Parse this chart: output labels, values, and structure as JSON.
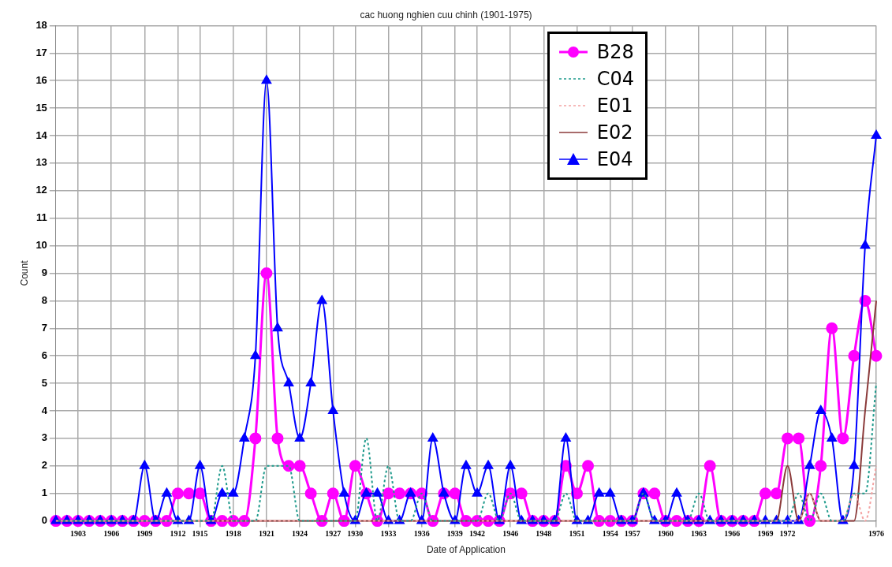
{
  "chart_data": {
    "type": "line",
    "title": "cac huong nghien cuu chinh (1901-1975)",
    "xlabel": "Date of Application",
    "ylabel": "Count",
    "categories": [
      null,
      null,
      "1903",
      null,
      null,
      "1906",
      null,
      null,
      "1909",
      null,
      null,
      "1912",
      null,
      "1915",
      null,
      null,
      "1918",
      null,
      null,
      "1921",
      null,
      null,
      "1924",
      null,
      null,
      "1927",
      null,
      "1930",
      null,
      null,
      "1933",
      null,
      null,
      "1936",
      null,
      null,
      "1939",
      null,
      "1942",
      null,
      null,
      "1946",
      null,
      null,
      "1948",
      null,
      null,
      "1951",
      null,
      null,
      "1954",
      null,
      "1957",
      null,
      null,
      "1960",
      null,
      null,
      "1963",
      null,
      null,
      "1966",
      null,
      null,
      "1969",
      null,
      "1972",
      null,
      null,
      null,
      null,
      null,
      null,
      null,
      "1976"
    ],
    "ylim": [
      0,
      18
    ],
    "yticks": [
      0,
      1,
      2,
      3,
      4,
      5,
      6,
      7,
      8,
      9,
      10,
      11,
      12,
      13,
      14,
      15,
      16,
      17,
      18
    ],
    "grid": true,
    "legend": "top right",
    "series": [
      {
        "name": "B28",
        "color": "#ff00ff",
        "marker": "circle",
        "line_style": "solid",
        "values": [
          0,
          0,
          0,
          0,
          0,
          0,
          0,
          0,
          0,
          0,
          0,
          1,
          1,
          1,
          0,
          0,
          0,
          0,
          3,
          9,
          3,
          2,
          2,
          1,
          0,
          1,
          0,
          2,
          1,
          0,
          1,
          1,
          1,
          1,
          0,
          1,
          1,
          0,
          0,
          0,
          0,
          1,
          1,
          0,
          0,
          0,
          2,
          1,
          2,
          0,
          0,
          0,
          0,
          1,
          1,
          0,
          0,
          0,
          0,
          2,
          0,
          0,
          0,
          0,
          1,
          1,
          3,
          3,
          0,
          2,
          7,
          3,
          6,
          8,
          6
        ]
      },
      {
        "name": "C04",
        "color": "#1e9a8c",
        "marker": "none",
        "line_style": "dashed",
        "values": [
          0,
          0,
          0,
          0,
          0,
          0,
          0,
          0,
          0,
          0,
          0,
          0,
          0,
          0,
          0,
          2,
          0,
          0,
          0,
          2,
          2,
          2,
          0,
          0,
          0,
          0,
          0,
          0,
          3,
          0,
          2,
          0,
          0,
          1,
          0,
          0,
          0,
          0,
          0,
          1,
          0,
          1,
          0,
          0,
          0,
          0,
          1,
          0,
          0,
          0,
          0,
          0,
          0,
          1,
          0,
          0,
          0,
          0,
          1,
          0,
          0,
          0,
          0,
          0,
          0,
          0,
          0,
          1,
          0,
          1,
          0,
          0,
          1,
          1,
          5
        ]
      },
      {
        "name": "E01",
        "color": "#f4a3a3",
        "marker": "none",
        "line_style": "dashed",
        "values": [
          0,
          0,
          0,
          0,
          0,
          0,
          0,
          0,
          0,
          0,
          0,
          0,
          0,
          0,
          0,
          0,
          0,
          0,
          0,
          0,
          0,
          0,
          0,
          0,
          0,
          0,
          0,
          0,
          0,
          0,
          0,
          0,
          0,
          0,
          0,
          0,
          0,
          0,
          0,
          0,
          0,
          0,
          0,
          0,
          0,
          0,
          0,
          0,
          0,
          0,
          0,
          0,
          0,
          0,
          0,
          0,
          0,
          0,
          0,
          0,
          0,
          0,
          0,
          0,
          0,
          0,
          0,
          0,
          1,
          0,
          0,
          0,
          1,
          0,
          2
        ]
      },
      {
        "name": "E02",
        "color": "#8b3a3a",
        "marker": "none",
        "line_style": "solid",
        "values": [
          0,
          0,
          0,
          0,
          0,
          0,
          0,
          0,
          0,
          0,
          0,
          0,
          0,
          0,
          0,
          0,
          0,
          0,
          0,
          0,
          0,
          0,
          0,
          0,
          0,
          0,
          0,
          0,
          0,
          0,
          0,
          0,
          0,
          0,
          0,
          0,
          0,
          0,
          0,
          0,
          0,
          0,
          0,
          0,
          0,
          0,
          0,
          0,
          0,
          0,
          0,
          0,
          0,
          0,
          0,
          0,
          0,
          0,
          0,
          0,
          0,
          0,
          0,
          0,
          0,
          0,
          2,
          0,
          1,
          0,
          0,
          0,
          0,
          4,
          8
        ]
      },
      {
        "name": "E04",
        "color": "#0000ff",
        "marker": "triangle",
        "line_style": "solid",
        "values": [
          0,
          0,
          0,
          0,
          0,
          0,
          0,
          0,
          2,
          0,
          1,
          0,
          0,
          2,
          0,
          1,
          1,
          3,
          6,
          16,
          7,
          5,
          3,
          5,
          8,
          4,
          1,
          0,
          1,
          1,
          0,
          0,
          1,
          0,
          3,
          1,
          0,
          2,
          1,
          2,
          0,
          2,
          0,
          0,
          0,
          0,
          3,
          0,
          0,
          1,
          1,
          0,
          0,
          1,
          0,
          0,
          1,
          0,
          0,
          0,
          0,
          0,
          0,
          0,
          0,
          0,
          0,
          0,
          2,
          4,
          3,
          0,
          2,
          10,
          14
        ]
      }
    ]
  }
}
